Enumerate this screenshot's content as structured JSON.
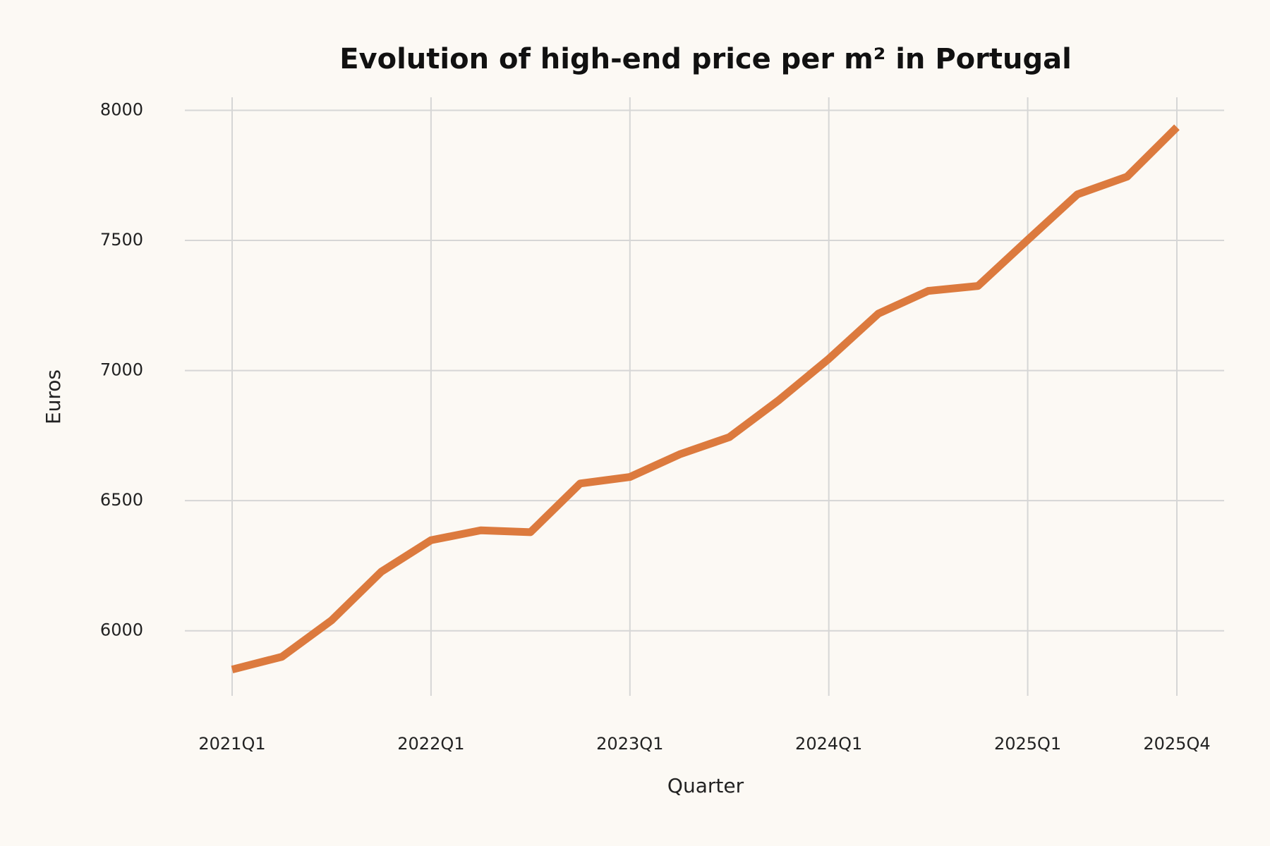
{
  "chart_data": {
    "type": "line",
    "title": "Evolution of high-end price per m² in Portugal",
    "x_label": "Quarter",
    "y_label": "Euros",
    "categories": [
      "2021Q1",
      null,
      null,
      null,
      "2022Q1",
      null,
      null,
      null,
      "2023Q1",
      null,
      null,
      null,
      "2024Q1",
      null,
      null,
      null,
      "2025Q1",
      null,
      null,
      "2025Q4"
    ],
    "values": [
      5851,
      5900,
      6040,
      6227,
      6348,
      6386,
      6379,
      6566,
      6591,
      6678,
      6744,
      6887,
      7045,
      7219,
      7306,
      7325,
      7502,
      7677,
      7745,
      7935
    ],
    "color": "#dc7a3e",
    "ylim": [
      5750,
      8050
    ],
    "yticks": [
      6000,
      6500,
      7000,
      7500,
      8000
    ],
    "grid": true
  }
}
